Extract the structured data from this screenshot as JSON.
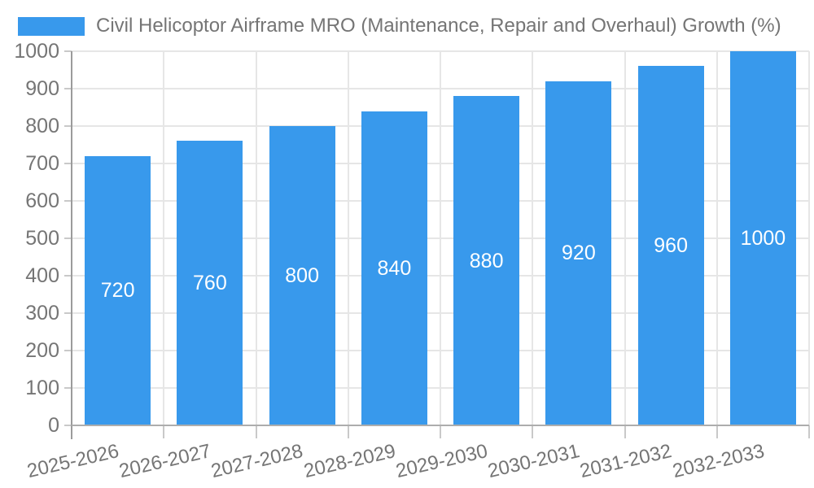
{
  "chart_data": {
    "type": "bar",
    "title": "",
    "xlabel": "",
    "ylabel": "",
    "series_name": "Civil Helicoptor Airframe MRO (Maintenance, Repair and Overhaul) Growth (%)",
    "categories": [
      "2025-2026",
      "2026-2027",
      "2027-2028",
      "2028-2029",
      "2029-2030",
      "2030-2031",
      "2031-2032",
      "2032-2033"
    ],
    "values": [
      720,
      760,
      800,
      840,
      880,
      920,
      960,
      1000
    ],
    "yticks": [
      0,
      100,
      200,
      300,
      400,
      500,
      600,
      700,
      800,
      900,
      1000
    ],
    "ylim": [
      0,
      1000
    ],
    "grid": true,
    "legend_position": "top-left",
    "value_labels_position": "inside-center"
  },
  "colors": {
    "bar": "#3899EC",
    "value_label": "#FFFFFF",
    "axis_text": "#757575",
    "legend_text": "#757575",
    "gridline": "#E6E6E6",
    "y_axis_line": "#9B9B9B",
    "x_axis_line": "#ADADAD",
    "tick_mark": "#C9C9C9",
    "background": "#FFFFFF"
  }
}
